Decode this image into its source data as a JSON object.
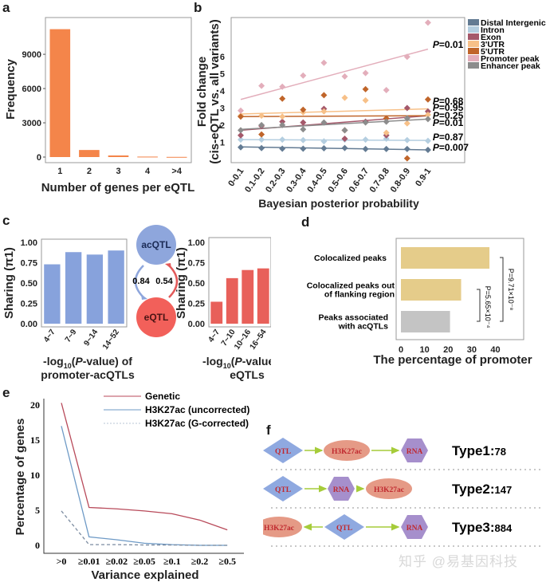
{
  "panels": {
    "a": "a",
    "b": "b",
    "c": "c",
    "d": "d",
    "e": "e",
    "f": "f"
  },
  "chart_data": [
    {
      "id": "a",
      "type": "bar",
      "title": "",
      "xlabel": "Number of genes per eQTL",
      "ylabel": "Frequency",
      "categories": [
        "1",
        "2",
        "3",
        "4",
        ">4"
      ],
      "values": [
        11200,
        620,
        140,
        40,
        15
      ],
      "ylim": [
        0,
        11800
      ],
      "yticks": [
        0,
        3000,
        6000,
        9000
      ],
      "color": "#f4854a"
    },
    {
      "id": "b",
      "type": "scatter",
      "xlabel": "Bayesian posterior probability",
      "ylabel": "Fold change",
      "ylabel2": "(cis-eQTL vs. all variants)",
      "categories": [
        "0-0.1",
        "0.1-0.2",
        "0.2-0.3",
        "0.3-0.4",
        "0.4-0.5",
        "0.5-0.6",
        "0.6-0.7",
        "0.7-0.8",
        "0.8-0.9",
        "0.9-1"
      ],
      "ylim": [
        -0.2,
        8.3
      ],
      "yticks": [
        1,
        2,
        3,
        4,
        5,
        6
      ],
      "legend_position": "right",
      "series": [
        {
          "name": "Distal Intergenic",
          "color": "#637b93",
          "values": [
            0.7,
            0.65,
            0.62,
            0.62,
            0.64,
            0.66,
            0.6,
            0.6,
            0.6,
            0.55
          ],
          "fit": [
            0.72,
            0.55
          ],
          "p": "0.007"
        },
        {
          "name": "Intron",
          "color": "#b4cee0",
          "values": [
            1.15,
            1.15,
            1.15,
            1.12,
            1.05,
            1.15,
            1.15,
            1.2,
            1.12,
            1.08
          ],
          "fit": [
            1.15,
            1.1
          ],
          "p": "0.87"
        },
        {
          "name": "Exon",
          "color": "#a5586a",
          "values": [
            1.4,
            1.95,
            2.2,
            2.15,
            2.95,
            1.2,
            2.2,
            1.4,
            3.0,
            2.8
          ],
          "fit": [
            1.7,
            2.55
          ],
          "p": "0.25"
        },
        {
          "name": "3'UTR",
          "color": "#f7c088",
          "values": [
            2.55,
            2.55,
            2.5,
            2.75,
            2.8,
            3.6,
            3.45,
            1.55,
            2.1,
            2.6
          ],
          "fit": [
            2.65,
            2.95
          ],
          "p": "0.68"
        },
        {
          "name": "5'UTR",
          "color": "#c0652a",
          "values": [
            2.5,
            1.45,
            3.55,
            2.9,
            3.75,
            1.7,
            4.1,
            2.4,
            0.05,
            3.5
          ],
          "fit": [
            2.5,
            2.55
          ],
          "p": "0.95"
        },
        {
          "name": "Promoter peak",
          "color": "#e3aebb",
          "values": [
            2.85,
            4.3,
            4.25,
            4.9,
            5.65,
            4.85,
            5.05,
            4.05,
            6.0,
            8.0
          ],
          "fit": [
            3.5,
            6.45
          ],
          "p": "0.01"
        },
        {
          "name": "Enhancer peak",
          "color": "#8c8c8c",
          "values": [
            1.7,
            2.0,
            2.0,
            1.75,
            2.15,
            1.7,
            2.15,
            2.2,
            2.4,
            2.35
          ],
          "fit": [
            1.75,
            2.35
          ],
          "p": "0.01"
        }
      ]
    },
    {
      "id": "c1",
      "type": "bar",
      "xlabel": "-log10(P-value) of promoter-acQTLs",
      "ylabel": "Sharing (π1)",
      "categories": [
        "4~7",
        "7~9",
        "9~14",
        "14~52"
      ],
      "values": [
        0.73,
        0.88,
        0.85,
        0.9
      ],
      "ylim": [
        0,
        1.0
      ],
      "yticks": [
        "0.00",
        "0.25",
        "0.50",
        "0.75",
        "1.00"
      ],
      "color": "#87a2dc"
    },
    {
      "id": "c2",
      "type": "bar",
      "xlabel": "-log10(P-value) of eQTLs",
      "ylabel": "Sharing (π1)",
      "categories": [
        "4~7",
        "7~10",
        "10~16",
        "16~54"
      ],
      "values": [
        0.27,
        0.56,
        0.66,
        0.68
      ],
      "ylim": [
        0,
        1.0
      ],
      "yticks": [
        "0.00",
        "0.25",
        "0.50",
        "0.75",
        "1.00"
      ],
      "color": "#e8605a"
    },
    {
      "id": "d",
      "type": "bar",
      "orientation": "horizontal",
      "xlabel": "The percentage of promoter",
      "categories": [
        "Colocalized peaks",
        "Colocalized peaks out of flanking region",
        "Peaks associated with acQTLs"
      ],
      "values": [
        37.5,
        25.5,
        20.8
      ],
      "colors": [
        "#e5cc8a",
        "#e5cc8a",
        "#c4c4c4"
      ],
      "xlim": [
        0,
        52
      ],
      "xticks": [
        0,
        10,
        20,
        30,
        40
      ],
      "annotations": [
        "P=9.71×10⁻⁸",
        "P=5.65×10⁻⁴"
      ]
    },
    {
      "id": "e",
      "type": "line",
      "xlabel": "Variance explained",
      "ylabel": "Percentage of genes",
      "categories": [
        ">0",
        "≥0.01",
        "≥0.02",
        "≥0.05",
        "≥0.1",
        "≥0.2",
        "≥0.5"
      ],
      "ylim": [
        -1,
        21
      ],
      "yticks": [
        0,
        5,
        10,
        15,
        20
      ],
      "legend_position": "top-right",
      "series": [
        {
          "name": "Genetic",
          "color": "#b84a5a",
          "dash": false,
          "values": [
            20.3,
            5.4,
            5.2,
            4.9,
            4.5,
            3.6,
            2.2
          ]
        },
        {
          "name": "H3K27ac (uncorrected)",
          "color": "#6e9ac6",
          "dash": false,
          "values": [
            17.0,
            1.2,
            0.8,
            0.3,
            0.1,
            0.0,
            0.0
          ]
        },
        {
          "name": "H3K27ac (G-corrected)",
          "color": "#7b8ba0",
          "dash": true,
          "values": [
            4.9,
            0.1,
            0.1,
            0.05,
            0.05,
            0.0,
            0.0
          ]
        }
      ]
    }
  ],
  "c_diagram": {
    "top": "acQTL",
    "bottom": "eQTL",
    "left_value": "0.84",
    "right_value": "0.54"
  },
  "f": {
    "rows": [
      {
        "label": "Type1:",
        "count": "78",
        "nodes": [
          "QTL",
          "H3K27ac",
          "RNA"
        ]
      },
      {
        "label": "Type2:",
        "count": "147",
        "nodes": [
          "QTL",
          "RNA",
          "H3K27ac"
        ]
      },
      {
        "label": "Type3:",
        "count": "884",
        "nodes": [
          "H3K27ac",
          "QTL",
          "RNA"
        ]
      }
    ]
  },
  "watermark": "知乎 @易基因科技"
}
